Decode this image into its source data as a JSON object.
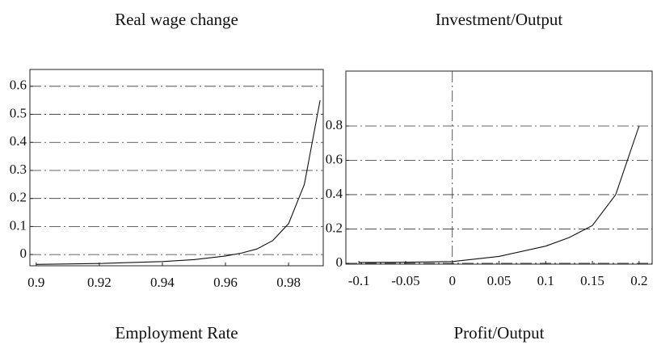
{
  "chart_data": [
    {
      "type": "line",
      "title": "Real wage change",
      "x_label": "Employment Rate",
      "x": [
        0.9,
        0.92,
        0.94,
        0.95,
        0.96,
        0.965,
        0.97,
        0.975,
        0.98,
        0.985,
        0.99
      ],
      "values": [
        -0.035,
        -0.032,
        -0.025,
        -0.018,
        -0.005,
        0.005,
        0.02,
        0.05,
        0.11,
        0.25,
        0.55
      ],
      "color": "#111111",
      "xlim": [
        0.898,
        0.991
      ],
      "ylim": [
        -0.04,
        0.66
      ],
      "xticks": [
        0.9,
        0.92,
        0.94,
        0.96,
        0.98
      ],
      "yticks": [
        0,
        0.1,
        0.2,
        0.3,
        0.4,
        0.5,
        0.6
      ],
      "grid": true
    },
    {
      "type": "line",
      "title": "Investment/Output",
      "x_label": "Profit/Output",
      "x": [
        -0.1,
        -0.05,
        0,
        0.05,
        0.1,
        0.125,
        0.15,
        0.175,
        0.2
      ],
      "values": [
        0.005,
        0.006,
        0.01,
        0.04,
        0.1,
        0.15,
        0.22,
        0.4,
        0.8
      ],
      "color": "#111111",
      "xlim": [
        -0.114,
        0.214
      ],
      "ylim": [
        -0.005,
        1.12
      ],
      "xticks": [
        -0.1,
        -0.05,
        0,
        0.05,
        0.1,
        0.15,
        0.2
      ],
      "yticks": [
        0,
        0.2,
        0.4,
        0.6,
        0.8
      ],
      "grid": true
    }
  ]
}
